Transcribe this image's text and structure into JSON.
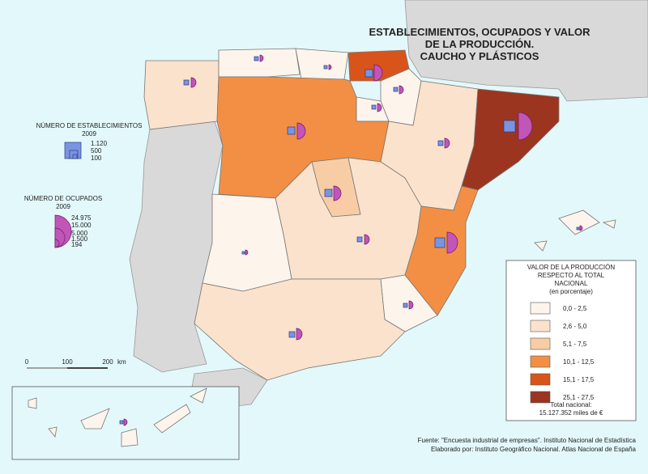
{
  "title": [
    "ESTABLECIMIENTOS, OCUPADOS Y VALOR",
    "DE LA PRODUCCIÓN.",
    "CAUCHO Y PLÁSTICOS"
  ],
  "establecimientos_legend": {
    "title": [
      "NÚMERO DE ESTABLECIMIENTOS",
      "2009"
    ],
    "labels": [
      "1.120",
      "500",
      "100"
    ]
  },
  "ocupados_legend": {
    "title": [
      "NÚMERO DE OCUPADOS",
      "2009"
    ],
    "labels": [
      "24.975",
      "15.000",
      "5.000",
      "1.500",
      "194"
    ]
  },
  "valor_legend": {
    "title": [
      "VALOR DE LA PRODUCCIÓN",
      "RESPECTO AL TOTAL",
      "NACIONAL",
      "(en porcentaje)"
    ],
    "classes": [
      {
        "label": "0,0 - 2,5",
        "color": "#fdf4ec"
      },
      {
        "label": "2,6 - 5,0",
        "color": "#fbe2cc"
      },
      {
        "label": "5,1 - 7,5",
        "color": "#f8cda5"
      },
      {
        "label": "10,1 - 12,5",
        "color": "#f28f45"
      },
      {
        "label": "15,1 - 17,5",
        "color": "#d9541a"
      },
      {
        "label": "25,1 - 27,5",
        "color": "#9c3520"
      }
    ],
    "total": [
      "Total nacional:",
      "15.127.352 miles de €"
    ]
  },
  "scale": {
    "labels": [
      "0",
      "100",
      "200"
    ],
    "unit": "km"
  },
  "source": [
    "Fuente: \"Encuesta industrial de empresas\". Instituto Nacional de Estadística",
    "Elaborado por: Instituto Geográfico Nacional. Atlas Nacional de España"
  ]
}
